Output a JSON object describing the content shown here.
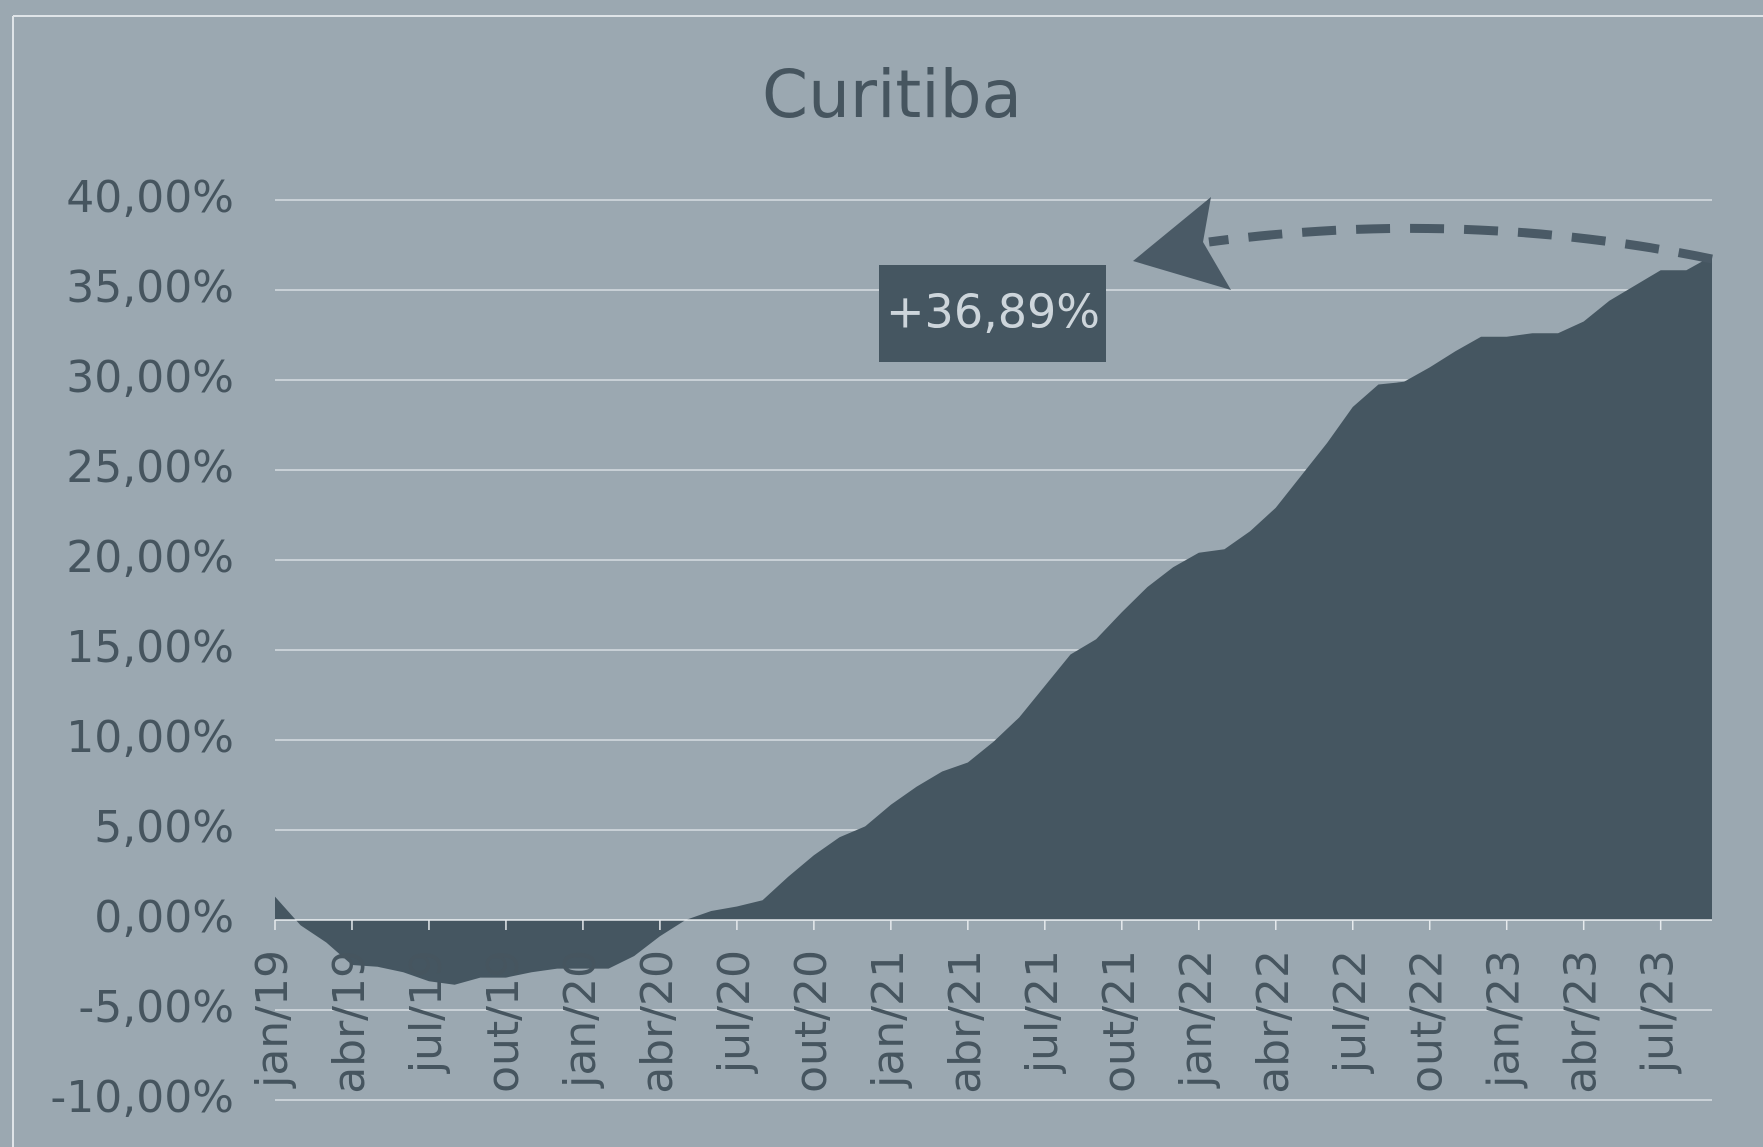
{
  "chart_data": {
    "type": "area",
    "title": "Curitiba",
    "annotation": "+36,89%",
    "color": "#455661",
    "grid": true,
    "categories": [
      "jan/19",
      null,
      null,
      "abr/19",
      null,
      null,
      "jul/19",
      null,
      null,
      "out/19",
      null,
      null,
      "jan/20",
      null,
      null,
      "abr/20",
      null,
      null,
      "jul/20",
      null,
      null,
      "out/20",
      null,
      null,
      "jan/21",
      null,
      null,
      "abr/21",
      null,
      null,
      "jul/21",
      null,
      null,
      "out/21",
      null,
      null,
      "jan/22",
      null,
      null,
      "abr/22",
      null,
      null,
      "jul/22",
      null,
      null,
      "out/22",
      null,
      null,
      "jan/23",
      null,
      null,
      "abr/23",
      null,
      null,
      "jul/23",
      null,
      null
    ],
    "values": [
      1.3,
      -0.3,
      -1.25,
      -2.5,
      -2.6,
      -2.9,
      -3.4,
      -3.6,
      -3.2,
      -3.2,
      -2.9,
      -2.7,
      -2.7,
      -2.7,
      -2.0,
      -0.9,
      0.0,
      0.5,
      0.75,
      1.1,
      2.4,
      3.6,
      4.6,
      5.2,
      6.4,
      7.4,
      8.25,
      8.75,
      9.9,
      11.25,
      13.0,
      14.75,
      15.6,
      17.1,
      18.5,
      19.6,
      20.4,
      20.6,
      21.6,
      22.9,
      24.7,
      26.5,
      28.5,
      29.75,
      29.9,
      30.7,
      31.6,
      32.4,
      32.4,
      32.6,
      32.6,
      33.25,
      34.4,
      35.25,
      36.1,
      36.1,
      36.89
    ],
    "ylim": [
      -10,
      40
    ],
    "yticks": [
      {
        "value": -10,
        "label": "-10,00%"
      },
      {
        "value": -5,
        "label": "-5,00%"
      },
      {
        "value": 0,
        "label": "0,00%"
      },
      {
        "value": 5,
        "label": "5,00%"
      },
      {
        "value": 10,
        "label": "10,00%"
      },
      {
        "value": 15,
        "label": "15,00%"
      },
      {
        "value": 20,
        "label": "20,00%"
      },
      {
        "value": 25,
        "label": "25,00%"
      },
      {
        "value": 30,
        "label": "30,00%"
      },
      {
        "value": 35,
        "label": "35,00%"
      },
      {
        "value": 40,
        "label": "40,00%"
      }
    ]
  }
}
